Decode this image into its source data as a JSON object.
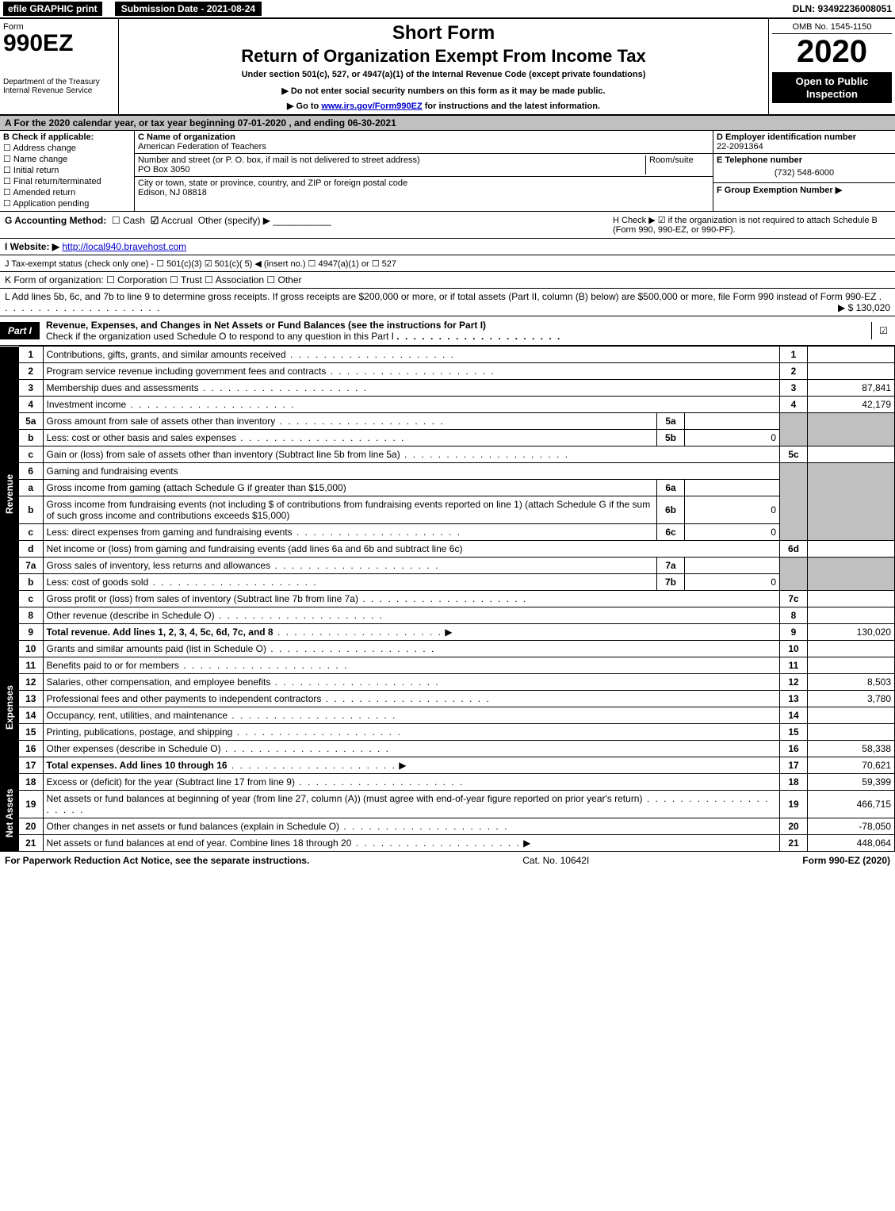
{
  "top_bar": {
    "efile": "efile GRAPHIC print",
    "submission_label": "Submission Date - 2021-08-24",
    "dln": "DLN: 93492236008051"
  },
  "header": {
    "form_word": "Form",
    "form_number": "990EZ",
    "dept": "Department of the Treasury",
    "irs": "Internal Revenue Service",
    "short_form": "Short Form",
    "return_title": "Return of Organization Exempt From Income Tax",
    "under_section": "Under section 501(c), 527, or 4947(a)(1) of the Internal Revenue Code (except private foundations)",
    "do_not": "▶ Do not enter social security numbers on this form as it may be made public.",
    "goto_prefix": "▶ Go to ",
    "goto_link": "www.irs.gov/Form990EZ",
    "goto_suffix": " for instructions and the latest information.",
    "omb": "OMB No. 1545-1150",
    "year": "2020",
    "open_public": "Open to Public Inspection"
  },
  "row_a": "A For the 2020 calendar year, or tax year beginning 07-01-2020 , and ending 06-30-2021",
  "box_b": {
    "title": "B Check if applicable:",
    "address_change": "Address change",
    "name_change": "Name change",
    "initial_return": "Initial return",
    "final_return": "Final return/terminated",
    "amended_return": "Amended return",
    "application_pending": "Application pending"
  },
  "box_c": {
    "name_label": "C Name of organization",
    "name": "American Federation of Teachers",
    "street_label": "Number and street (or P. O. box, if mail is not delivered to street address)",
    "street": "PO Box 3050",
    "room_label": "Room/suite",
    "city_label": "City or town, state or province, country, and ZIP or foreign postal code",
    "city": "Edison, NJ  08818"
  },
  "box_d": {
    "label": "D Employer identification number",
    "value": "22-2091364"
  },
  "box_e": {
    "label": "E Telephone number",
    "value": "(732) 548-6000"
  },
  "box_f": {
    "label": "F Group Exemption Number  ▶"
  },
  "box_g": {
    "label": "G Accounting Method:",
    "cash": "Cash",
    "accrual": "Accrual",
    "other": "Other (specify) ▶"
  },
  "box_h": {
    "text1": "H Check ▶ ☑ if the organization is not required to attach Schedule B",
    "text2": "(Form 990, 990-EZ, or 990-PF)."
  },
  "box_i": {
    "label": "I Website: ▶",
    "value": "http://local940.bravehost.com"
  },
  "box_j": "J Tax-exempt status (check only one) - ☐ 501(c)(3) ☑ 501(c)( 5) ◀ (insert no.) ☐ 4947(a)(1) or ☐ 527",
  "box_k": "K Form of organization:  ☐ Corporation  ☐ Trust  ☐ Association  ☐ Other",
  "box_l": {
    "text": "L Add lines 5b, 6c, and 7b to line 9 to determine gross receipts. If gross receipts are $200,000 or more, or if total assets (Part II, column (B) below) are $500,000 or more, file Form 990 instead of Form 990-EZ",
    "arrow": "▶ $ 130,020"
  },
  "part1": {
    "label": "Part I",
    "title": "Revenue, Expenses, and Changes in Net Assets or Fund Balances (see the instructions for Part I)",
    "subtitle": "Check if the organization used Schedule O to respond to any question in this Part I",
    "checked": "☑"
  },
  "side_labels": {
    "revenue": "Revenue",
    "expenses": "Expenses",
    "netassets": "Net Assets"
  },
  "lines": {
    "l1": {
      "num": "1",
      "desc": "Contributions, gifts, grants, and similar amounts received",
      "ln": "1",
      "amt": ""
    },
    "l2": {
      "num": "2",
      "desc": "Program service revenue including government fees and contracts",
      "ln": "2",
      "amt": ""
    },
    "l3": {
      "num": "3",
      "desc": "Membership dues and assessments",
      "ln": "3",
      "amt": "87,841"
    },
    "l4": {
      "num": "4",
      "desc": "Investment income",
      "ln": "4",
      "amt": "42,179"
    },
    "l5a": {
      "num": "5a",
      "desc": "Gross amount from sale of assets other than inventory",
      "sub": "5a",
      "subval": ""
    },
    "l5b": {
      "num": "b",
      "desc": "Less: cost or other basis and sales expenses",
      "sub": "5b",
      "subval": "0"
    },
    "l5c": {
      "num": "c",
      "desc": "Gain or (loss) from sale of assets other than inventory (Subtract line 5b from line 5a)",
      "ln": "5c",
      "amt": ""
    },
    "l6": {
      "num": "6",
      "desc": "Gaming and fundraising events"
    },
    "l6a": {
      "num": "a",
      "desc": "Gross income from gaming (attach Schedule G if greater than $15,000)",
      "sub": "6a",
      "subval": ""
    },
    "l6b": {
      "num": "b",
      "desc": "Gross income from fundraising events (not including $              of contributions from fundraising events reported on line 1) (attach Schedule G if the sum of such gross income and contributions exceeds $15,000)",
      "sub": "6b",
      "subval": "0"
    },
    "l6c": {
      "num": "c",
      "desc": "Less: direct expenses from gaming and fundraising events",
      "sub": "6c",
      "subval": "0"
    },
    "l6d": {
      "num": "d",
      "desc": "Net income or (loss) from gaming and fundraising events (add lines 6a and 6b and subtract line 6c)",
      "ln": "6d",
      "amt": ""
    },
    "l7a": {
      "num": "7a",
      "desc": "Gross sales of inventory, less returns and allowances",
      "sub": "7a",
      "subval": ""
    },
    "l7b": {
      "num": "b",
      "desc": "Less: cost of goods sold",
      "sub": "7b",
      "subval": "0"
    },
    "l7c": {
      "num": "c",
      "desc": "Gross profit or (loss) from sales of inventory (Subtract line 7b from line 7a)",
      "ln": "7c",
      "amt": ""
    },
    "l8": {
      "num": "8",
      "desc": "Other revenue (describe in Schedule O)",
      "ln": "8",
      "amt": ""
    },
    "l9": {
      "num": "9",
      "desc": "Total revenue. Add lines 1, 2, 3, 4, 5c, 6d, 7c, and 8",
      "ln": "9",
      "amt": "130,020",
      "bold": true
    },
    "l10": {
      "num": "10",
      "desc": "Grants and similar amounts paid (list in Schedule O)",
      "ln": "10",
      "amt": ""
    },
    "l11": {
      "num": "11",
      "desc": "Benefits paid to or for members",
      "ln": "11",
      "amt": ""
    },
    "l12": {
      "num": "12",
      "desc": "Salaries, other compensation, and employee benefits",
      "ln": "12",
      "amt": "8,503"
    },
    "l13": {
      "num": "13",
      "desc": "Professional fees and other payments to independent contractors",
      "ln": "13",
      "amt": "3,780"
    },
    "l14": {
      "num": "14",
      "desc": "Occupancy, rent, utilities, and maintenance",
      "ln": "14",
      "amt": ""
    },
    "l15": {
      "num": "15",
      "desc": "Printing, publications, postage, and shipping",
      "ln": "15",
      "amt": ""
    },
    "l16": {
      "num": "16",
      "desc": "Other expenses (describe in Schedule O)",
      "ln": "16",
      "amt": "58,338"
    },
    "l17": {
      "num": "17",
      "desc": "Total expenses. Add lines 10 through 16",
      "ln": "17",
      "amt": "70,621",
      "bold": true
    },
    "l18": {
      "num": "18",
      "desc": "Excess or (deficit) for the year (Subtract line 17 from line 9)",
      "ln": "18",
      "amt": "59,399"
    },
    "l19": {
      "num": "19",
      "desc": "Net assets or fund balances at beginning of year (from line 27, column (A)) (must agree with end-of-year figure reported on prior year's return)",
      "ln": "19",
      "amt": "466,715"
    },
    "l20": {
      "num": "20",
      "desc": "Other changes in net assets or fund balances (explain in Schedule O)",
      "ln": "20",
      "amt": "-78,050"
    },
    "l21": {
      "num": "21",
      "desc": "Net assets or fund balances at end of year. Combine lines 18 through 20",
      "ln": "21",
      "amt": "448,064"
    }
  },
  "footer": {
    "left": "For Paperwork Reduction Act Notice, see the separate instructions.",
    "cat": "Cat. No. 10642I",
    "right": "Form 990-EZ (2020)"
  },
  "colors": {
    "header_bg": "#c0c0c0",
    "black": "#000000",
    "white": "#ffffff",
    "link": "#0000cc"
  }
}
